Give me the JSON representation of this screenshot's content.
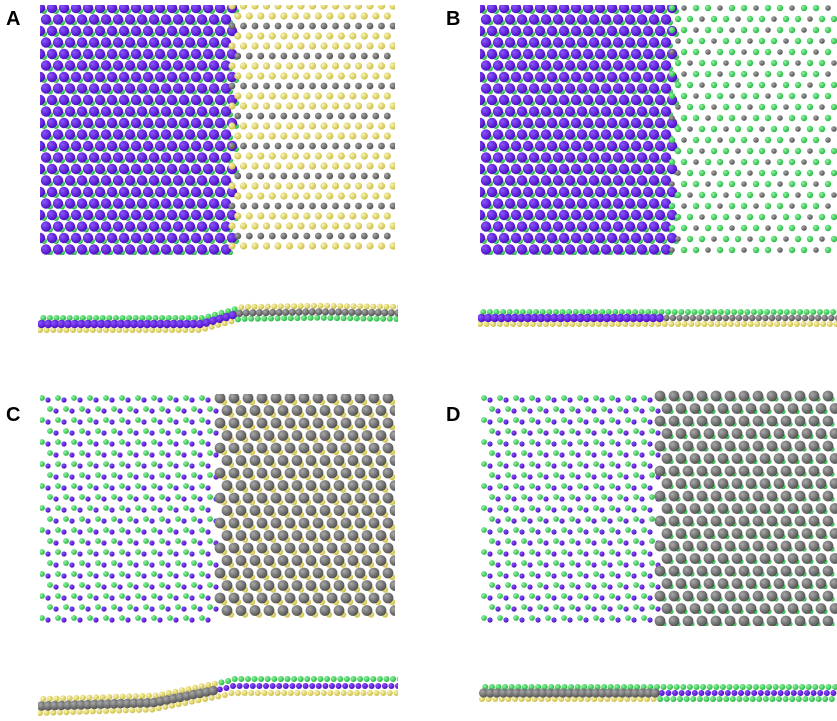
{
  "panels": [
    {
      "label": "A"
    },
    {
      "label": "B"
    },
    {
      "label": "C"
    },
    {
      "label": "D"
    }
  ],
  "colors": {
    "purple": "#5a10d8",
    "green": "#3ddc5a",
    "yellow": "#e8dc6a",
    "gray": "#6f6f6f",
    "white": "#ffffff"
  }
}
